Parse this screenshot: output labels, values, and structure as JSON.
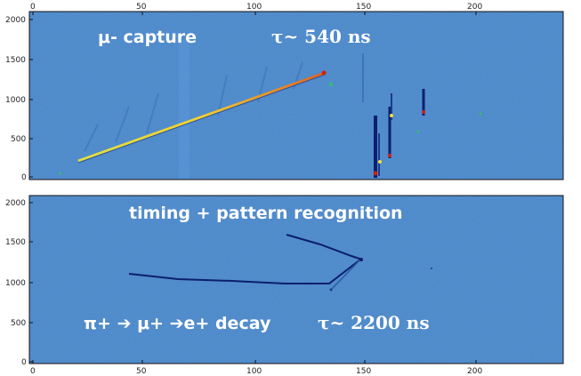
{
  "top_panel": {
    "x_ticks": [
      "0",
      "50",
      "100",
      "150",
      "200"
    ],
    "y_ticks": [
      "0",
      "500",
      "1000",
      "1500",
      "2000"
    ],
    "label_left": "μ- capture",
    "label_right": "τ~ 540 ns"
  },
  "bottom_panel": {
    "x_ticks": [
      "0",
      "50",
      "100",
      "150",
      "200"
    ],
    "y_ticks": [
      "0",
      "500",
      "1000",
      "1500",
      "2000"
    ],
    "label_top": "timing + pattern recognition",
    "label_decay": "π+ ➔ μ+ ➔e+ decay",
    "label_tau": "τ~ 2200 ns"
  },
  "colors": {
    "background_blue": "#4a86c8",
    "track_dark": "#0b1f6e",
    "hit_red": "#d02010",
    "hit_yellow": "#f0e040",
    "hit_green": "#30c070",
    "text_white": "#ffffff"
  }
}
